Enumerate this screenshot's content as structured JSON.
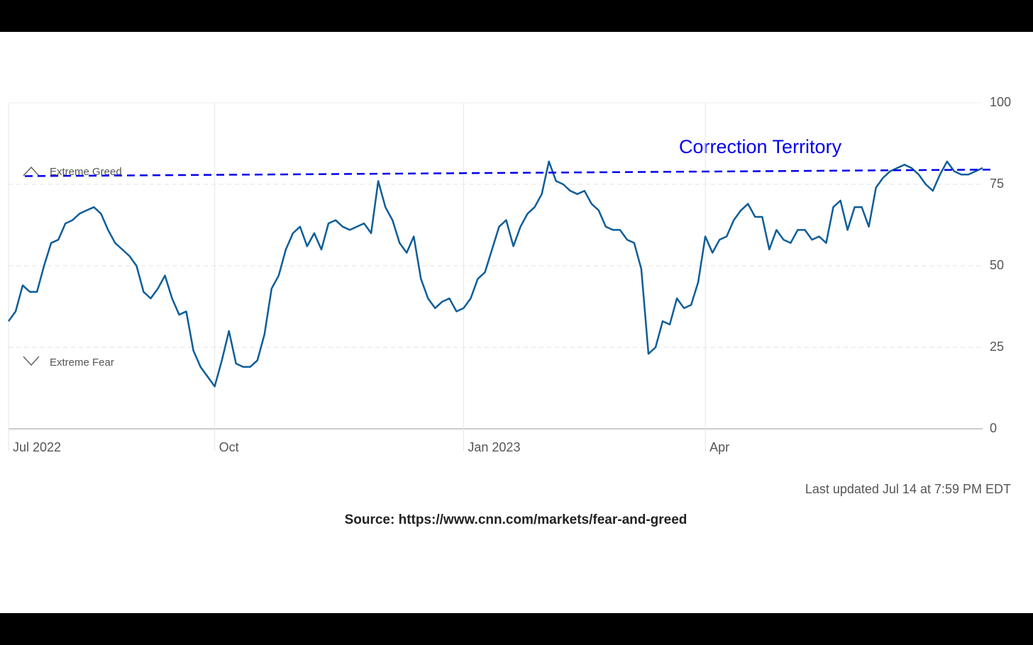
{
  "chart_data": {
    "type": "line",
    "categories": [
      "Jul 2022",
      null,
      null,
      null,
      null,
      null,
      null,
      null,
      null,
      null,
      null,
      null,
      null,
      null,
      null,
      null,
      null,
      null,
      null,
      null,
      null,
      null,
      null,
      null,
      null,
      null,
      null,
      null,
      null,
      "Oct",
      null,
      null,
      null,
      null,
      null,
      null,
      null,
      null,
      null,
      null,
      null,
      null,
      null,
      null,
      null,
      null,
      null,
      null,
      null,
      null,
      null,
      null,
      null,
      null,
      null,
      null,
      null,
      null,
      null,
      null,
      null,
      null,
      null,
      null,
      "Jan 2023",
      null,
      null,
      null,
      null,
      null,
      null,
      null,
      null,
      null,
      null,
      null,
      null,
      null,
      null,
      null,
      null,
      null,
      null,
      null,
      null,
      null,
      null,
      null,
      null,
      null,
      null,
      null,
      null,
      null,
      null,
      null,
      null,
      null,
      "Apr",
      null,
      null,
      null,
      null,
      null,
      null,
      null,
      null,
      null,
      null,
      null,
      null,
      null,
      null,
      null,
      null,
      null,
      null,
      null,
      null,
      null,
      null,
      null,
      null,
      null,
      null,
      null,
      null,
      null,
      null,
      null,
      null,
      null,
      null,
      null,
      null,
      null,
      null,
      null
    ],
    "series": [
      {
        "color": "#0d5d99",
        "values": [
          33,
          36,
          44,
          42,
          42,
          50,
          57,
          58,
          63,
          64,
          66,
          67,
          68,
          66,
          61,
          57,
          55,
          53,
          50,
          42,
          40,
          43,
          47,
          40,
          35,
          36,
          24,
          19,
          16,
          13,
          21,
          30,
          20,
          19,
          19,
          21,
          29,
          43,
          47,
          55,
          60,
          62,
          56,
          60,
          55,
          63,
          64,
          62,
          61,
          62,
          63,
          60,
          76,
          68,
          64,
          57,
          54,
          59,
          46,
          40,
          37,
          39,
          40,
          36,
          37,
          40,
          46,
          48,
          55,
          62,
          64,
          56,
          62,
          66,
          68,
          72,
          82,
          76,
          75,
          73,
          72,
          73,
          69,
          67,
          62,
          61,
          61,
          58,
          57,
          49,
          23,
          25,
          33,
          32,
          40,
          37,
          38,
          45,
          59,
          54,
          58,
          59,
          64,
          67,
          69,
          65,
          65,
          55,
          61,
          58,
          57,
          61,
          61,
          58,
          59,
          57,
          68,
          70,
          61,
          68,
          68,
          62,
          74,
          77,
          79,
          80,
          81,
          80,
          78,
          75,
          73,
          78,
          82,
          79,
          78,
          78,
          79,
          80
        ]
      }
    ],
    "ylim": [
      0,
      100
    ],
    "yticks": [
      0,
      25,
      50,
      75,
      100
    ],
    "grid": true,
    "zones": {
      "greed": "Extreme Greed",
      "fear": "Extreme Fear"
    },
    "annotation": {
      "text": "Correction Territory",
      "color": "#0000ee",
      "line_values": [
        77.5,
        79.5
      ]
    },
    "footnote": "Last updated Jul 14 at 7:59 PM EDT",
    "source": "Source: https://www.cnn.com/markets/fear-and-greed"
  }
}
